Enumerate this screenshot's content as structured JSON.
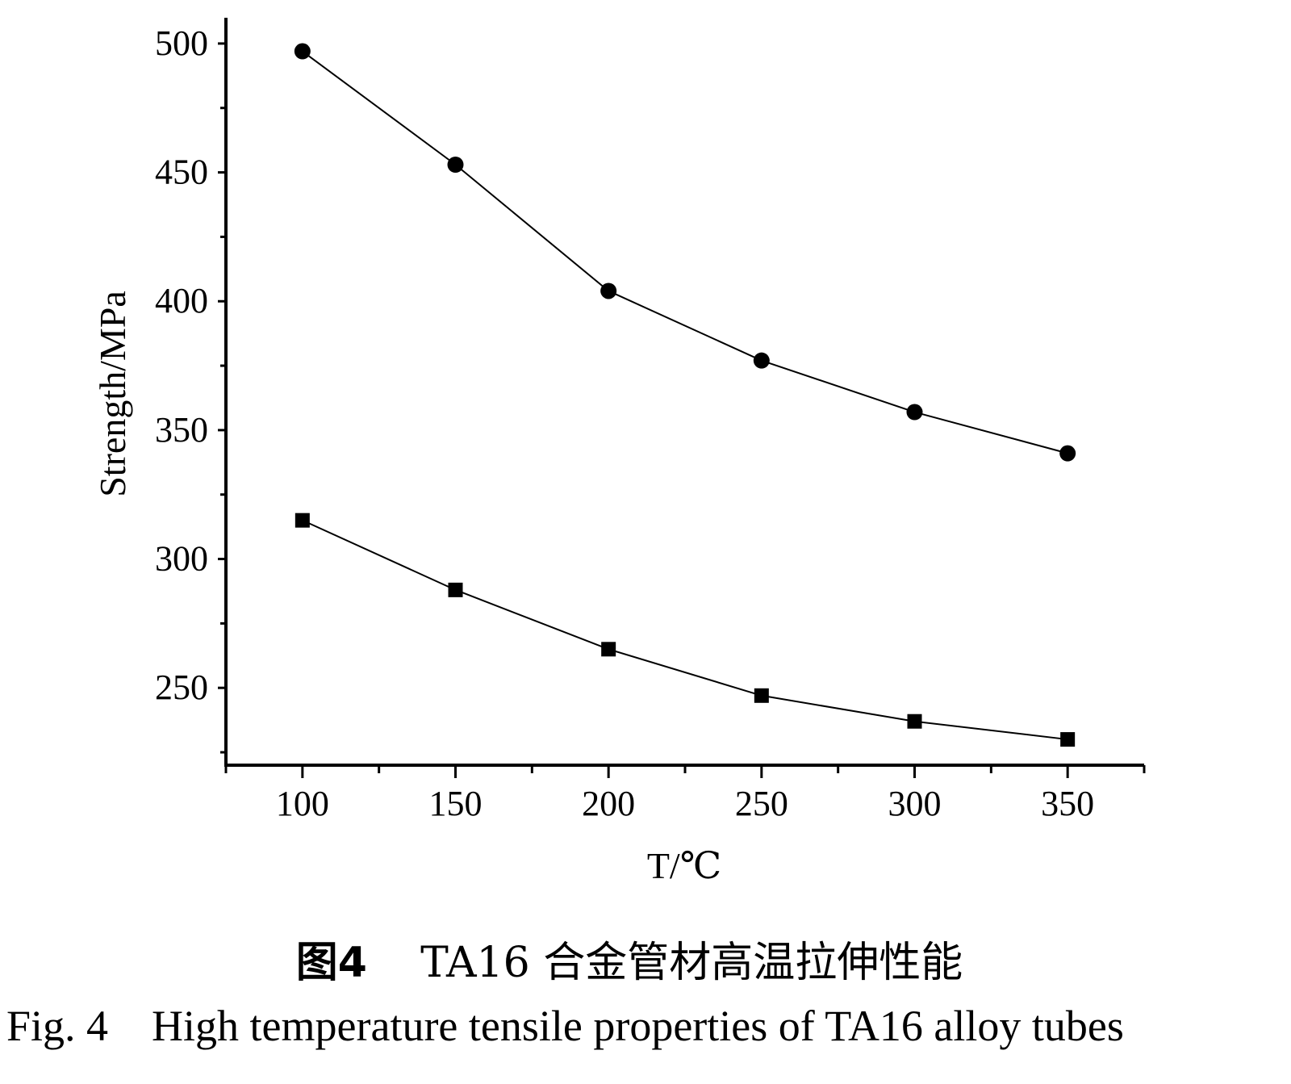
{
  "chart_data": {
    "type": "line",
    "xlabel": "T/℃",
    "ylabel": "Strength/MPa",
    "xlim": [
      75,
      375
    ],
    "ylim": [
      220,
      510
    ],
    "x_ticks": [
      100,
      150,
      200,
      250,
      300,
      350
    ],
    "y_ticks": [
      250,
      300,
      350,
      400,
      450,
      500
    ],
    "grid": false,
    "x": [
      100,
      150,
      200,
      250,
      300,
      350
    ],
    "series": [
      {
        "marker": "circle",
        "values": [
          497,
          453,
          404,
          377,
          357,
          341
        ]
      },
      {
        "marker": "square",
        "values": [
          315,
          288,
          265,
          247,
          237,
          230
        ]
      }
    ],
    "line_color": "#000000"
  },
  "caption": {
    "cn_label": "图4",
    "cn_text": "TA16 合金管材高温拉伸性能",
    "en_label": "Fig. 4",
    "en_text": "High temperature tensile properties of TA16 alloy tubes"
  }
}
